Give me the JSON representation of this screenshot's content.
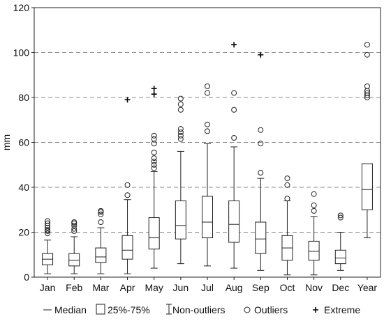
{
  "chart_data": {
    "type": "box",
    "title": "",
    "xlabel": "",
    "ylabel": "mm",
    "ylim": [
      0,
      120
    ],
    "yticks": [
      0,
      20,
      40,
      60,
      80,
      100,
      120
    ],
    "grid": {
      "y": true,
      "style": "dashed",
      "values": [
        20,
        40,
        60,
        80,
        100
      ]
    },
    "categories": [
      "Jan",
      "Feb",
      "Mar",
      "Apr",
      "May",
      "Jun",
      "Jul",
      "Aug",
      "Sep",
      "Oct",
      "Nov",
      "Dec",
      "Year"
    ],
    "boxes": [
      {
        "category": "Jan",
        "whisker_low": 1.5,
        "q1": 5.5,
        "median": 8,
        "q3": 10.5,
        "whisker_high": 16.5,
        "outliers": [
          19.5,
          20.5,
          21,
          22,
          23,
          24,
          25
        ],
        "extremes": []
      },
      {
        "category": "Feb",
        "whisker_low": 1.5,
        "q1": 5,
        "median": 7.5,
        "q3": 10.5,
        "whisker_high": 18,
        "outliers": [
          20.5,
          21.5,
          23,
          24,
          24.5
        ],
        "extremes": []
      },
      {
        "category": "Mar",
        "whisker_low": 1.5,
        "q1": 6.5,
        "median": 9,
        "q3": 13,
        "whisker_high": 22,
        "outliers": [
          24.5,
          28,
          29,
          29.5
        ],
        "extremes": []
      },
      {
        "category": "Apr",
        "whisker_low": 1.5,
        "q1": 8,
        "median": 12,
        "q3": 18.5,
        "whisker_high": 34.5,
        "outliers": [
          36.5,
          41
        ],
        "extremes": [
          79
        ]
      },
      {
        "category": "May",
        "whisker_low": 4,
        "q1": 12.5,
        "median": 17.5,
        "q3": 26.5,
        "whisker_high": 47,
        "outliers": [
          48.5,
          50,
          51.5,
          53,
          55.5,
          59.5,
          61.5,
          63
        ],
        "extremes": [
          81.5,
          84
        ]
      },
      {
        "category": "Jun",
        "whisker_low": 6,
        "q1": 17,
        "median": 23,
        "q3": 34,
        "whisker_high": 56,
        "outliers": [
          61.5,
          63,
          64.5,
          66,
          74.5,
          77,
          79.5
        ],
        "extremes": []
      },
      {
        "category": "Jul",
        "whisker_low": 5,
        "q1": 17.5,
        "median": 24.5,
        "q3": 36,
        "whisker_high": 59.5,
        "outliers": [
          65,
          68,
          82,
          85
        ],
        "extremes": []
      },
      {
        "category": "Aug",
        "whisker_low": 4,
        "q1": 15.5,
        "median": 23.5,
        "q3": 34,
        "whisker_high": 58,
        "outliers": [
          62,
          74.5,
          82
        ],
        "extremes": [
          103.5
        ]
      },
      {
        "category": "Sep",
        "whisker_low": 3,
        "q1": 10.5,
        "median": 17,
        "q3": 24.5,
        "whisker_high": 44,
        "outliers": [
          46.5,
          59.5,
          65.5
        ],
        "extremes": [
          99
        ]
      },
      {
        "category": "Oct",
        "whisker_low": 1,
        "q1": 7.5,
        "median": 13,
        "q3": 18.5,
        "whisker_high": 34,
        "outliers": [
          35,
          41,
          44
        ],
        "extremes": []
      },
      {
        "category": "Nov",
        "whisker_low": 1,
        "q1": 7.5,
        "median": 11.5,
        "q3": 16,
        "whisker_high": 27,
        "outliers": [
          29.5,
          32,
          37
        ],
        "extremes": []
      },
      {
        "category": "Dec",
        "whisker_low": 3,
        "q1": 6,
        "median": 8.5,
        "q3": 12,
        "whisker_high": 20,
        "outliers": [
          26.5,
          27.5
        ],
        "extremes": []
      },
      {
        "category": "Year",
        "whisker_low": 17.5,
        "q1": 30,
        "median": 39,
        "q3": 50.5,
        "whisker_high": null,
        "outliers": [
          80,
          81,
          82,
          83,
          85,
          99,
          103.5
        ],
        "extremes": []
      }
    ],
    "legend": {
      "placement": "bottom",
      "items": [
        {
          "symbol": "line",
          "label": "Median"
        },
        {
          "symbol": "box",
          "label": "25%-75%"
        },
        {
          "symbol": "whisker",
          "label": "Non-outliers"
        },
        {
          "symbol": "circle",
          "label": "Outliers"
        },
        {
          "symbol": "plus",
          "label": "Extreme"
        }
      ]
    },
    "colors": {
      "box": "#ffffff",
      "stroke": "#222222",
      "grid": "#888888"
    }
  }
}
